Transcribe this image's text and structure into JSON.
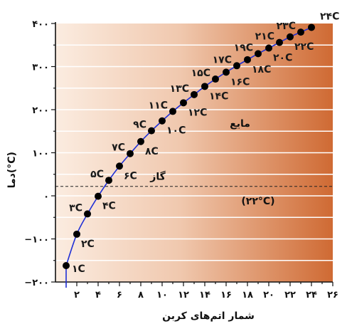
{
  "chart_data": {
    "type": "scatter",
    "xlabel": "شمار اتم‌های کربن",
    "ylabel": "دما(°C)",
    "xlim": [
      0,
      26
    ],
    "ylim": [
      -200,
      400
    ],
    "x_ticks": [
      2,
      4,
      6,
      8,
      10,
      12,
      14,
      16,
      18,
      20,
      22,
      24,
      26
    ],
    "x_tick_labels": [
      "۲",
      "۴",
      "۶",
      "۸",
      "۱۰",
      "۱۲",
      "۱۴",
      "۱۶",
      "۱۸",
      "۲۰",
      "۲۲",
      "۲۴",
      "۲۶"
    ],
    "y_ticks": [
      -200,
      -100,
      0,
      100,
      200,
      300,
      400
    ],
    "y_tick_labels": [
      "−۲۰۰",
      "−۱۰۰",
      "۰",
      "۱۰۰",
      "۲۰۰",
      "۳۰۰",
      "۴۰۰"
    ],
    "grid": true,
    "reference_line": {
      "y": 22,
      "label": "(۲۲°C)",
      "style": "dashed"
    },
    "regions": [
      {
        "label": "مایع"
      },
      {
        "label": "گاز"
      }
    ],
    "points": [
      {
        "x": 1,
        "y": -162,
        "label": "۱C"
      },
      {
        "x": 2,
        "y": -89,
        "label": "۲C"
      },
      {
        "x": 3,
        "y": -42,
        "label": "۳C"
      },
      {
        "x": 4,
        "y": -1,
        "label": "۴C"
      },
      {
        "x": 5,
        "y": 36,
        "label": "۵C"
      },
      {
        "x": 6,
        "y": 69,
        "label": "۶C"
      },
      {
        "x": 7,
        "y": 98,
        "label": "۷C"
      },
      {
        "x": 8,
        "y": 126,
        "label": "۸C"
      },
      {
        "x": 9,
        "y": 151,
        "label": "۹C"
      },
      {
        "x": 10,
        "y": 174,
        "label": "۱۰C"
      },
      {
        "x": 11,
        "y": 196,
        "label": "۱۱C"
      },
      {
        "x": 12,
        "y": 216,
        "label": "۱۲C"
      },
      {
        "x": 13,
        "y": 235,
        "label": "۱۳C"
      },
      {
        "x": 14,
        "y": 254,
        "label": "۱۴C"
      },
      {
        "x": 15,
        "y": 271,
        "label": "۱۵C"
      },
      {
        "x": 16,
        "y": 287,
        "label": "۱۶C"
      },
      {
        "x": 17,
        "y": 302,
        "label": "۱۷C"
      },
      {
        "x": 18,
        "y": 316,
        "label": "۱۸C"
      },
      {
        "x": 19,
        "y": 330,
        "label": "۱۹C"
      },
      {
        "x": 20,
        "y": 343,
        "label": "۲۰C"
      },
      {
        "x": 21,
        "y": 356,
        "label": "۲۱C"
      },
      {
        "x": 22,
        "y": 369,
        "label": "۲۲C"
      },
      {
        "x": 23,
        "y": 380,
        "label": "۲۳C"
      },
      {
        "x": 24,
        "y": 391,
        "label": "۲۴C"
      }
    ],
    "colors": {
      "background_light": "#fbece0",
      "background_dark": "#cf6a33",
      "curve": "#1f2fd6",
      "points": "#000000",
      "grid": "#ffffff"
    }
  }
}
